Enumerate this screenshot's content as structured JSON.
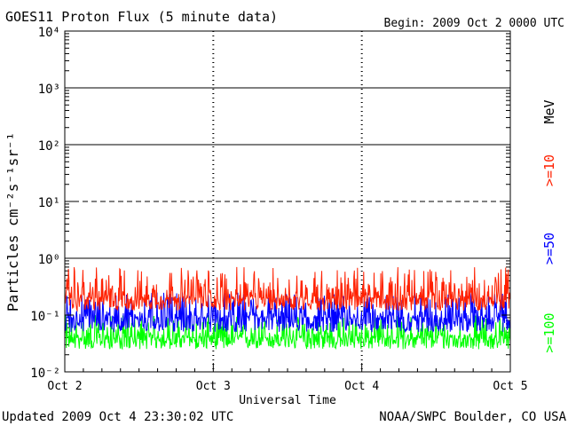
{
  "header": {
    "title": "GOES11 Proton Flux (5 minute data)",
    "begin": "Begin: 2009 Oct 2 0000 UTC"
  },
  "footer": {
    "updated": "Updated 2009 Oct  4 23:30:02 UTC",
    "source": "NOAA/SWPC Boulder, CO USA"
  },
  "chart_data": {
    "type": "line",
    "title": "GOES11 Proton Flux (5 minute data)",
    "xlabel": "Universal Time",
    "ylabel": "Particles cm⁻²s⁻¹sr⁻¹",
    "yscale": "log",
    "ylim": [
      0.01,
      10000
    ],
    "xlim": [
      "2009-10-02 00:00",
      "2009-10-05 00:00"
    ],
    "x_ticks": [
      "Oct 2",
      "Oct 3",
      "Oct 4",
      "Oct 5"
    ],
    "y_ticks": [
      "10⁻²",
      "10⁻¹",
      "10⁰",
      "10¹",
      "10²",
      "10³",
      "10⁴"
    ],
    "grid": true,
    "legend_position": "right",
    "legend_unit": "MeV",
    "series": [
      {
        "name": ">=10",
        "color": "#ff2000",
        "typical": 0.2,
        "min": 0.12,
        "max": 0.7
      },
      {
        "name": ">=50",
        "color": "#0000ff",
        "typical": 0.09,
        "min": 0.05,
        "max": 0.25
      },
      {
        "name": ">=100",
        "color": "#00ff00",
        "typical": 0.04,
        "min": 0.025,
        "max": 0.1
      }
    ],
    "threshold_lines": [
      {
        "value": 10,
        "style": "dashed"
      },
      {
        "value": 1,
        "style": "solid"
      },
      {
        "value": 100,
        "style": "solid"
      },
      {
        "value": 1000,
        "style": "solid"
      }
    ]
  }
}
